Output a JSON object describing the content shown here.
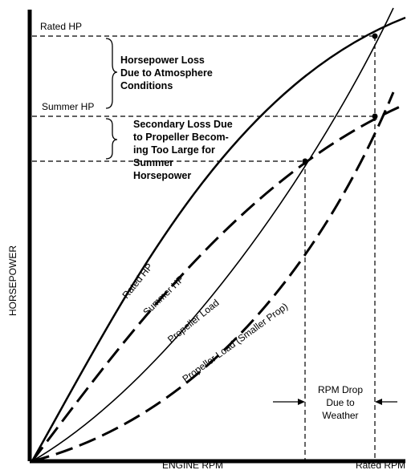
{
  "diagram": {
    "axis_labels": {
      "y": "HORSEPOWER",
      "x": "ENGINE RPM",
      "x_end": "Rated RPM"
    },
    "level_labels": {
      "rated_hp": "Rated HP",
      "summer_hp": "Summer HP"
    },
    "annotations": {
      "hp_loss": [
        "Horsepower Loss",
        "Due to Atmosphere",
        "Conditions"
      ],
      "secondary_loss": [
        "Secondary Loss Due",
        "to Propeller Becom-",
        "ing Too Large for",
        "Summer",
        "Horsepower"
      ],
      "rpm_drop": [
        "RPM Drop",
        "Due to",
        "Weather"
      ]
    },
    "curve_labels": {
      "rated_hp": "Rated HP",
      "summer_hp": "Summer HP",
      "propeller_load": "Propeller Load",
      "propeller_load_smaller": "Propeller Load (Smaller Prop)"
    },
    "colors": {
      "ink": "#000000",
      "background": "#ffffff"
    }
  }
}
